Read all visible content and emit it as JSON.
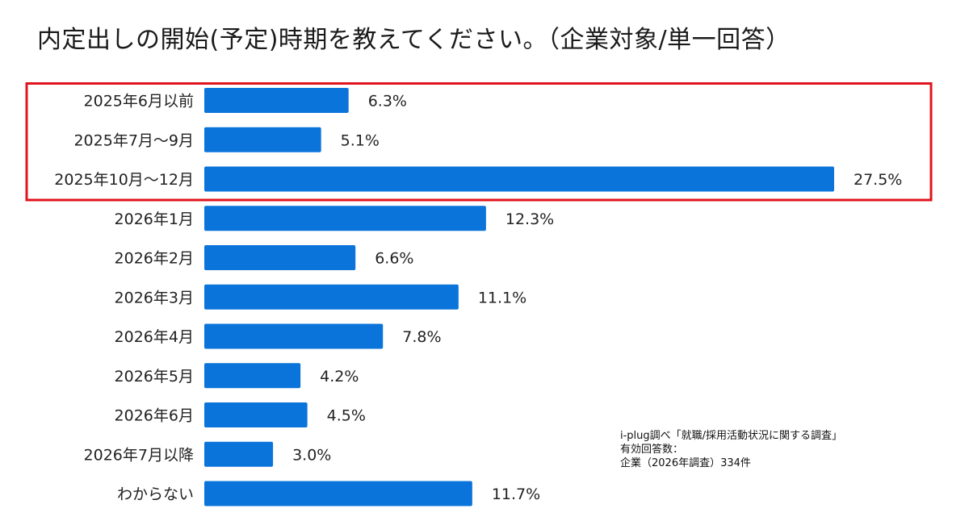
{
  "colors": {
    "bar": "#0A74DA",
    "highlight_border": "#E0141E"
  },
  "chart_data": {
    "type": "bar",
    "orientation": "horizontal",
    "title": "内定出しの開始(予定)時期を教えてください。（企業対象/単一回答）",
    "categories": [
      "2025年6月以前",
      "2025年7月～9月",
      "2025年10月～12月",
      "2026年1月",
      "2026年2月",
      "2026年3月",
      "2026年4月",
      "2026年5月",
      "2026年6月",
      "2026年7月以降",
      "わからない"
    ],
    "values": [
      6.3,
      5.1,
      27.5,
      12.3,
      6.6,
      11.1,
      7.8,
      4.2,
      4.5,
      3.0,
      11.7
    ],
    "value_labels": [
      "6.3%",
      "5.1%",
      "27.5%",
      "12.3%",
      "6.6%",
      "11.1%",
      "7.8%",
      "4.2%",
      "4.5%",
      "3.0%",
      "11.7%"
    ],
    "unit": "%",
    "xlim": [
      0,
      27.5
    ],
    "grid": false,
    "legend": "none",
    "highlighted_categories": [
      0,
      1,
      2
    ]
  },
  "source": {
    "line1": "i-plug調べ「就職/採用活動状況に関する調査」",
    "line2": "有効回答数：",
    "line3": "企業（2026年調査）334件"
  }
}
